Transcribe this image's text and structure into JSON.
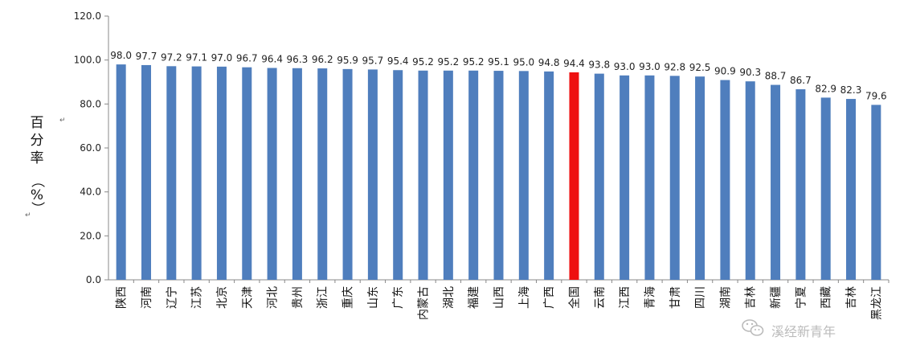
{
  "chart_data": {
    "type": "bar",
    "ylabel": "百分率（%）",
    "ylim": [
      0,
      120
    ],
    "yticks": [
      "0.0",
      "20.0",
      "40.0",
      "60.0",
      "80.0",
      "100.0",
      "120.0"
    ],
    "grid": false,
    "legend": "none",
    "categories": [
      "陕西",
      "河南",
      "辽宁",
      "江苏",
      "北京",
      "天津",
      "河北",
      "贵州",
      "浙江",
      "重庆",
      "山东",
      "广东",
      "内蒙古",
      "湖北",
      "福建",
      "山西",
      "上海",
      "广西",
      "全国",
      "云南",
      "江西",
      "青海",
      "甘肃",
      "四川",
      "湖南",
      "吉林",
      "新疆",
      "宁夏",
      "西藏",
      "吉林",
      "黑龙江"
    ],
    "values": [
      98.0,
      97.7,
      97.2,
      97.1,
      97.0,
      96.7,
      96.4,
      96.3,
      96.2,
      95.9,
      95.7,
      95.4,
      95.2,
      95.2,
      95.2,
      95.1,
      95.0,
      94.8,
      94.4,
      93.8,
      93.0,
      93.0,
      92.8,
      92.5,
      90.9,
      90.3,
      88.7,
      86.7,
      82.9,
      82.3,
      79.6
    ],
    "value_labels": [
      "98.0",
      "97.7",
      "97.2",
      "97.1",
      "97.0",
      "96.7",
      "96.4",
      "96.3",
      "96.2",
      "95.9",
      "95.7",
      "95.4",
      "95.2",
      "95.2",
      "95.2",
      "95.1",
      "95.0",
      "94.8",
      "94.4",
      "93.8",
      "93.0",
      "93.0",
      "92.8",
      "92.5",
      "90.9",
      "90.3",
      "88.7",
      "86.7",
      "82.9",
      "82.3",
      "79.6"
    ],
    "highlight_category": "全国",
    "colors": {
      "bar": "#4f7ebd",
      "highlight": "#ee1111",
      "axis": "#888888"
    }
  },
  "watermark": {
    "text": "溪经新青年",
    "icon": "wechat-icon"
  },
  "artifacts": {
    "return_mark": "↵"
  }
}
